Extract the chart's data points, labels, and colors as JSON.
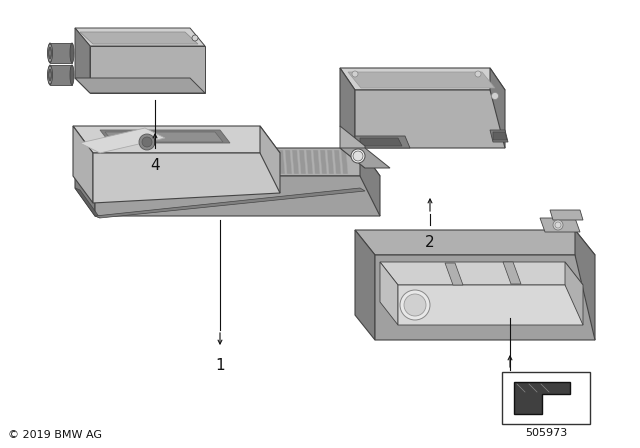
{
  "background_color": "#ffffff",
  "copyright_text": "© 2019 BMW AG",
  "part_number": "505973",
  "gray_light": "#d0d0d0",
  "gray_mid": "#b0b0b0",
  "gray_main": "#a0a0a0",
  "gray_dark": "#808080",
  "gray_darker": "#606060",
  "outline": "#444444",
  "label_color": "#111111"
}
